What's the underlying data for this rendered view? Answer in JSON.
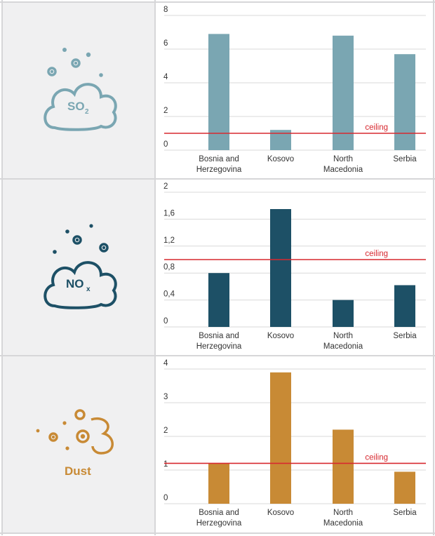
{
  "panels": [
    {
      "icon_name": "so2-cloud-icon",
      "icon_label": "SO",
      "icon_sub": "2",
      "color": "#7aa6b2",
      "chart_data": {
        "type": "bar",
        "categories": [
          [
            "Bosnia and",
            "Herzegovina"
          ],
          [
            "Kosovo"
          ],
          [
            "North",
            "Macedonia"
          ],
          [
            "Serbia"
          ]
        ],
        "values": [
          6.9,
          1.2,
          6.8,
          5.7
        ],
        "yticks": [
          "0",
          "2",
          "4",
          "6",
          "8"
        ],
        "ylim": [
          0,
          8
        ],
        "ceiling": 1,
        "ceiling_label": "ceiling",
        "grid": true
      }
    },
    {
      "icon_name": "nox-cloud-icon",
      "icon_label": "NO",
      "icon_sub": "x",
      "color": "#1d5066",
      "chart_data": {
        "type": "bar",
        "categories": [
          [
            "Bosnia and",
            "Herzegovina"
          ],
          [
            "Kosovo"
          ],
          [
            "North",
            "Macedonia"
          ],
          [
            "Serbia"
          ]
        ],
        "values": [
          0.8,
          1.75,
          0.4,
          0.62
        ],
        "yticks": [
          "0",
          "0,4",
          "0,8",
          "1,2",
          "1,6",
          "2"
        ],
        "ylim": [
          0,
          2
        ],
        "ceiling": 1,
        "ceiling_label": "ceiling",
        "grid": true
      }
    },
    {
      "icon_name": "dust-particles-icon",
      "icon_label": "Dust",
      "icon_sub": "",
      "color": "#c88a35",
      "chart_data": {
        "type": "bar",
        "categories": [
          [
            "Bosnia and",
            "Herzegovina"
          ],
          [
            "Kosovo"
          ],
          [
            "North",
            "Macedonia"
          ],
          [
            "Serbia"
          ]
        ],
        "values": [
          1.2,
          3.9,
          2.2,
          0.95
        ],
        "yticks": [
          "0",
          "1",
          "2",
          "3",
          "4"
        ],
        "ylim": [
          0,
          4
        ],
        "ceiling": 1.2,
        "ceiling_label": "ceiling",
        "grid": true
      }
    }
  ],
  "ceiling_color": "#d7282f"
}
